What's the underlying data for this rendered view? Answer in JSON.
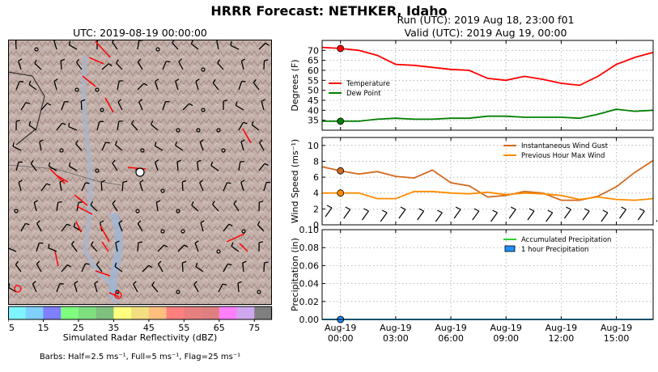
{
  "title": "HRRR Forecast: NETHKER, Idaho",
  "run_line": "Run (UTC): 2019 Aug 18, 23:00 f01",
  "valid_line": "Valid (UTC): 2019 Aug 19, 00:00",
  "map": {
    "title": "UTC: 2019-08-19 00:00:00",
    "colorbar": {
      "label": "Simulated Radar Reflectivity (dBZ)",
      "ticks": [
        "5",
        "15",
        "25",
        "35",
        "45",
        "55",
        "65",
        "75"
      ],
      "colors": [
        "#7ff3ff",
        "#7fcfff",
        "#7f7fff",
        "#7fff7f",
        "#7fdf7f",
        "#7fbf7f",
        "#ffff7f",
        "#f3df7f",
        "#ffbf7f",
        "#ff7f7f",
        "#e77f7f",
        "#df7f7f",
        "#ff7fff",
        "#cfa7ef",
        "#7f7f7f"
      ]
    },
    "barbs_note": "Barbs: Half=2.5 ms⁻¹, Full=5 ms⁻¹, Flag=25 ms⁻¹"
  },
  "x_ticks": [
    {
      "line1": "Aug-19",
      "line2": "00:00"
    },
    {
      "line1": "Aug-19",
      "line2": "03:00"
    },
    {
      "line1": "Aug-19",
      "line2": "06:00"
    },
    {
      "line1": "Aug-19",
      "line2": "09:00"
    },
    {
      "line1": "Aug-19",
      "line2": "12:00"
    },
    {
      "line1": "Aug-19",
      "line2": "15:00"
    }
  ],
  "chart_data": [
    {
      "type": "line",
      "ylabel": "Degrees (F)",
      "ylim": [
        30,
        75
      ],
      "yticks": [
        35,
        40,
        45,
        50,
        55,
        60,
        65,
        70
      ],
      "x_hours": [
        -1,
        0,
        1,
        2,
        3,
        4,
        5,
        6,
        7,
        8,
        9,
        10,
        11,
        12,
        13,
        14,
        15,
        16,
        17
      ],
      "grid": true,
      "legend": "center-left",
      "series": [
        {
          "name": "Temperature",
          "color": "#ff0000",
          "values": [
            71.5,
            71,
            70,
            67.5,
            63,
            62.5,
            61.5,
            60.5,
            60,
            56,
            55,
            57,
            55.5,
            53.5,
            52.5,
            57,
            63,
            66.5,
            69
          ]
        },
        {
          "name": "Dew Point",
          "color": "#008000",
          "values": [
            34.5,
            34.5,
            34.5,
            35.5,
            36,
            35.5,
            35.5,
            36,
            36,
            37,
            37,
            36.5,
            36.5,
            36.5,
            36,
            38,
            40.5,
            39.5,
            40
          ]
        }
      ],
      "marker_hour": 0
    },
    {
      "type": "line",
      "ylabel": "Wind Speed (ms⁻¹)",
      "ylim": [
        0,
        11
      ],
      "yticks": [
        0,
        2,
        4,
        6,
        8,
        10
      ],
      "x_hours": [
        -1,
        0,
        1,
        2,
        3,
        4,
        5,
        6,
        7,
        8,
        9,
        10,
        11,
        12,
        13,
        14,
        15,
        16,
        17
      ],
      "grid": true,
      "legend": "top-right",
      "series": [
        {
          "name": "Instantaneous Wind Gust",
          "color": "#d2691e",
          "values": [
            7.3,
            6.8,
            6.4,
            6.7,
            6.1,
            5.9,
            6.9,
            5.3,
            4.9,
            3.5,
            3.7,
            4.2,
            4,
            3.1,
            3.1,
            3.6,
            4.8,
            6.6,
            8.1
          ]
        },
        {
          "name": "Previous Hour Max Wind",
          "color": "#ff8c00",
          "values": [
            4,
            4,
            4,
            3.3,
            3.3,
            4.2,
            4.2,
            4,
            3.9,
            4.1,
            3.8,
            4,
            3.9,
            3.7,
            3.2,
            3.5,
            3.2,
            3.1,
            3.3
          ]
        }
      ],
      "marker_hour": 0
    },
    {
      "type": "area",
      "ylabel": "Precipitation (in)",
      "ylim": [
        0,
        0.1
      ],
      "yticks": [
        "0.00",
        "0.02",
        "0.04",
        "0.06",
        "0.08",
        "0.10"
      ],
      "x_hours": [
        -1,
        0,
        1,
        2,
        3,
        4,
        5,
        6,
        7,
        8,
        9,
        10,
        11,
        12,
        13,
        14,
        15,
        16,
        17
      ],
      "grid": true,
      "legend": "top-right",
      "series": [
        {
          "name": "Accumulated Precipitation",
          "color": "#32cd32",
          "values": [
            0,
            0,
            0,
            0,
            0,
            0,
            0,
            0,
            0,
            0,
            0,
            0,
            0,
            0,
            0,
            0,
            0,
            0,
            0
          ]
        },
        {
          "name": "1 hour Precipitation",
          "color": "#1e90ff",
          "values": [
            0,
            0,
            0,
            0,
            0,
            0,
            0,
            0,
            0,
            0,
            0,
            0,
            0,
            0,
            0,
            0,
            0,
            0,
            0
          ]
        }
      ],
      "marker_hour": 0
    }
  ]
}
